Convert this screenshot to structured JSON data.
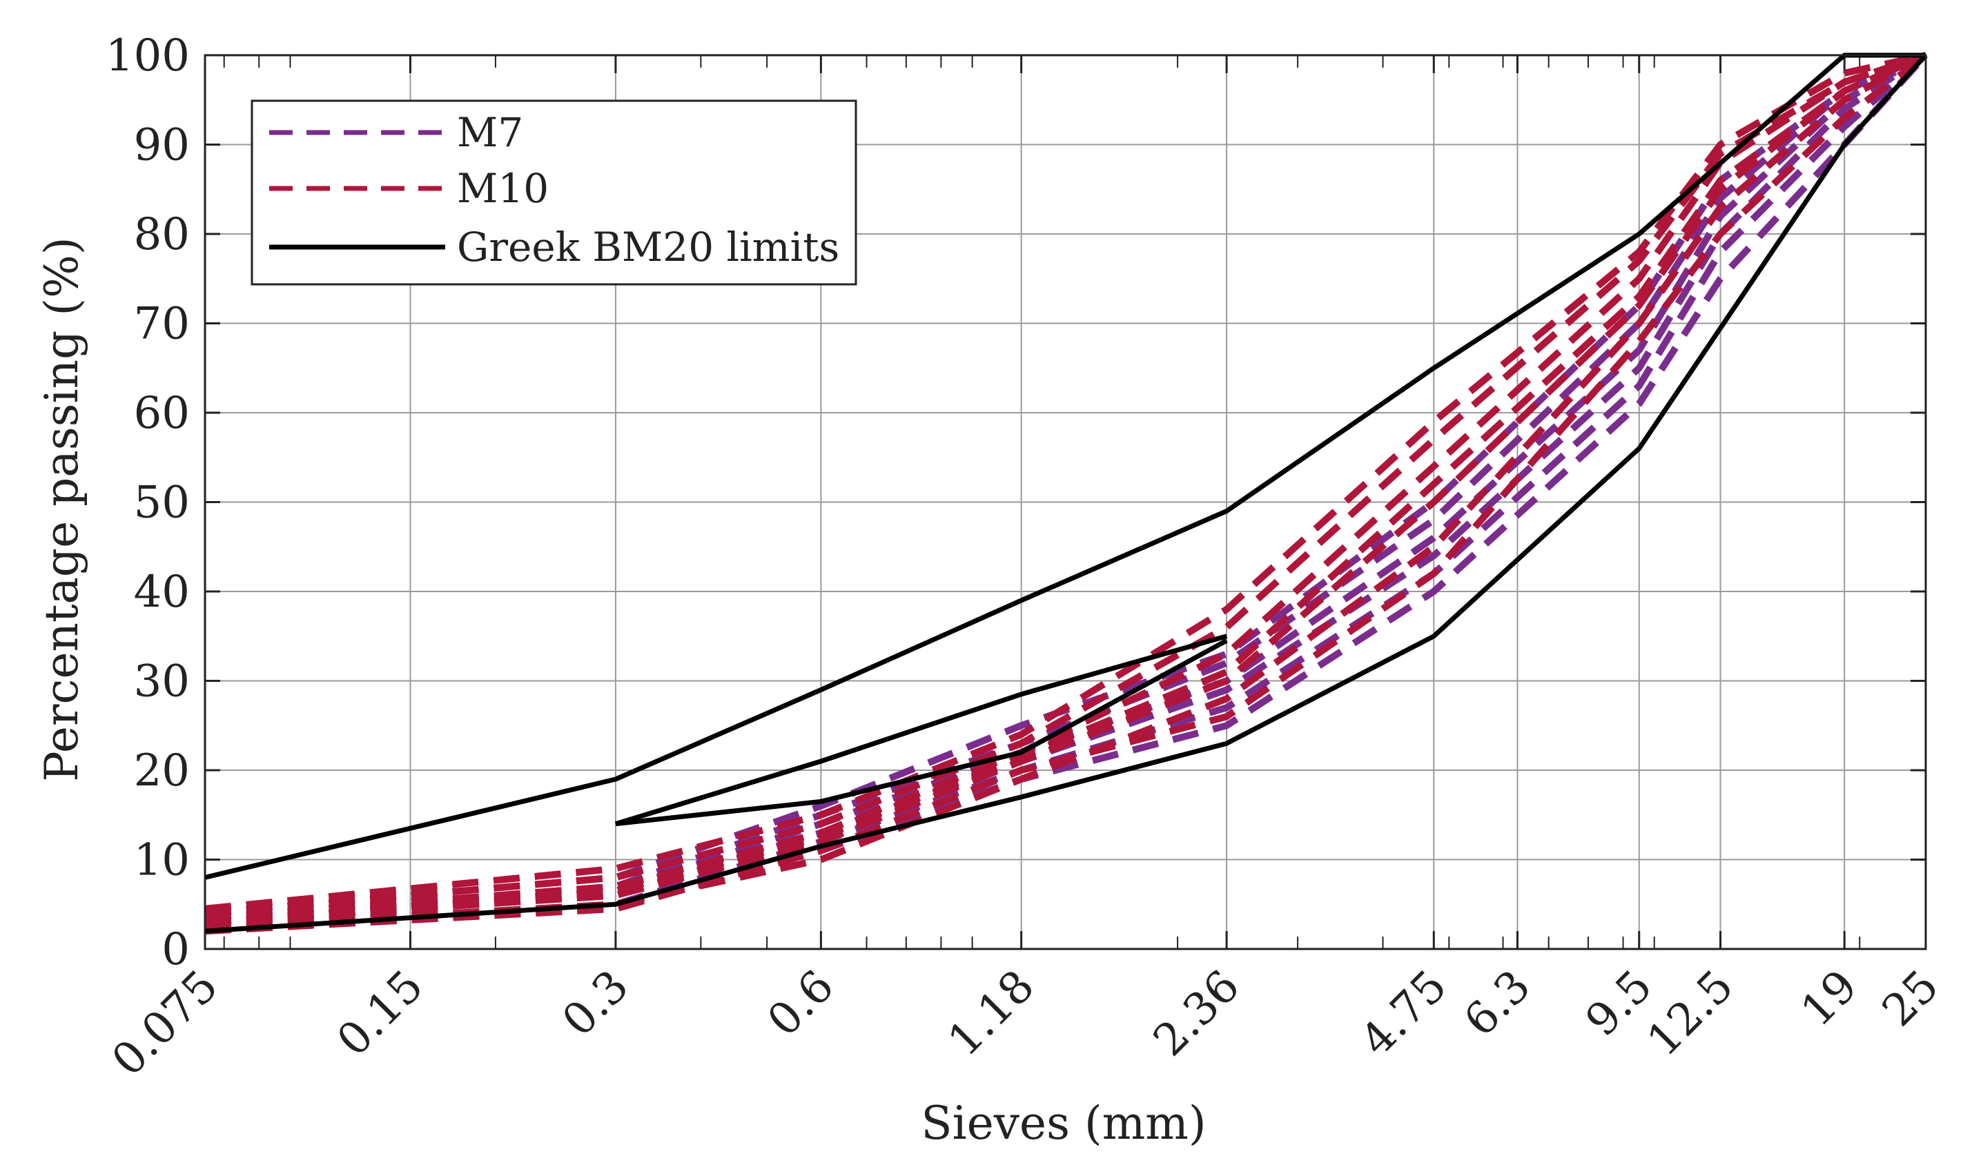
{
  "chart_data": {
    "type": "line",
    "title": "",
    "xlabel": "Sieves (mm)",
    "ylabel": "Percentage passing (%)",
    "x_scale": "log",
    "xlim": [
      0.075,
      25
    ],
    "ylim": [
      0,
      100
    ],
    "grid": true,
    "legend_position": "top-left",
    "x_ticks": [
      0.075,
      0.15,
      0.3,
      0.6,
      1.18,
      2.36,
      4.75,
      6.3,
      9.5,
      12.5,
      19,
      25
    ],
    "x_tick_labels": [
      "0.075",
      "0.15",
      "0.3",
      "0.6",
      "1.18",
      "2.36",
      "4.75",
      "6.3",
      "9.5",
      "12.5",
      "19",
      "25"
    ],
    "y_ticks": [
      0,
      10,
      20,
      30,
      40,
      50,
      60,
      70,
      80,
      90,
      100
    ],
    "y_tick_labels": [
      "0",
      "10",
      "20",
      "30",
      "40",
      "50",
      "60",
      "70",
      "80",
      "90",
      "100"
    ],
    "sieves": [
      0.075,
      0.3,
      0.6,
      1.18,
      2.36,
      4.75,
      9.5,
      12.5,
      19,
      25
    ],
    "legend": [
      {
        "label": "M7",
        "color": "#7b2d8e",
        "style": "dashed"
      },
      {
        "label": "M10",
        "color": "#b0153a",
        "style": "dashed"
      },
      {
        "label": "Greek BM20 limits",
        "color": "#000000",
        "style": "solid"
      }
    ],
    "series": [
      {
        "group": "M7",
        "color": "#7b2d8e",
        "y": [
          2.5,
          5,
          12,
          20,
          27,
          42,
          63,
          78,
          92,
          100
        ]
      },
      {
        "group": "M7",
        "color": "#7b2d8e",
        "y": [
          3,
          6,
          13,
          21,
          29,
          44,
          65,
          80,
          94,
          100
        ]
      },
      {
        "group": "M7",
        "color": "#7b2d8e",
        "y": [
          3.5,
          7,
          15,
          23,
          32,
          48,
          70,
          84,
          96,
          100
        ]
      },
      {
        "group": "M7",
        "color": "#7b2d8e",
        "y": [
          4,
          8,
          16,
          25,
          33,
          50,
          72,
          86,
          96,
          100
        ]
      },
      {
        "group": "M7",
        "color": "#7b2d8e",
        "y": [
          2,
          4.5,
          11,
          19,
          25,
          40,
          61,
          75,
          90,
          100
        ]
      },
      {
        "group": "M7",
        "color": "#7b2d8e",
        "y": [
          3,
          6.5,
          14,
          22,
          30,
          46,
          67,
          82,
          95,
          100
        ]
      },
      {
        "group": "M10",
        "color": "#b0153a",
        "y": [
          2.5,
          5,
          10,
          19,
          28,
          45,
          70,
          83,
          95,
          100
        ]
      },
      {
        "group": "M10",
        "color": "#b0153a",
        "y": [
          3,
          6,
          12,
          21,
          30,
          50,
          72,
          85,
          96,
          100
        ]
      },
      {
        "group": "M10",
        "color": "#b0153a",
        "y": [
          3.5,
          7,
          13,
          22,
          33,
          54,
          75,
          88,
          97,
          100
        ]
      },
      {
        "group": "M10",
        "color": "#b0153a",
        "y": [
          4,
          8,
          14,
          23,
          36,
          57,
          77,
          89,
          97,
          100
        ]
      },
      {
        "group": "M10",
        "color": "#b0153a",
        "y": [
          4.5,
          9,
          15,
          24,
          38,
          59,
          78,
          90,
          98,
          100
        ]
      },
      {
        "group": "M10",
        "color": "#b0153a",
        "y": [
          2,
          4.5,
          11,
          20,
          26,
          42,
          68,
          80,
          93,
          100
        ]
      },
      {
        "group": "M10",
        "color": "#b0153a",
        "y": [
          3,
          6.5,
          12.5,
          21.5,
          31,
          52,
          73,
          86,
          96,
          100
        ]
      }
    ],
    "limits": [
      {
        "name": "Greek BM20 limits",
        "x": [
          0.075,
          0.3,
          0.6,
          1.18,
          2.36,
          4.75,
          9.5,
          19,
          25
        ],
        "y": [
          8,
          19,
          29,
          39,
          49,
          65,
          80,
          100,
          100
        ]
      },
      {
        "name": "Greek BM20 limits",
        "x": [
          0.075,
          0.3,
          0.6,
          1.18,
          2.36,
          4.75,
          9.5,
          19,
          25
        ],
        "y": [
          2,
          5,
          11.5,
          17,
          23,
          35,
          56,
          90,
          100
        ]
      },
      {
        "name": "Greek BM20 limits",
        "x": [
          0.3,
          0.6,
          1.18,
          2.36
        ],
        "y": [
          14,
          21,
          28.5,
          35
        ]
      },
      {
        "name": "Greek BM20 limits",
        "x": [
          0.3,
          0.6,
          1.18,
          2.36
        ],
        "y": [
          14,
          16.5,
          22,
          34.5
        ]
      }
    ]
  }
}
